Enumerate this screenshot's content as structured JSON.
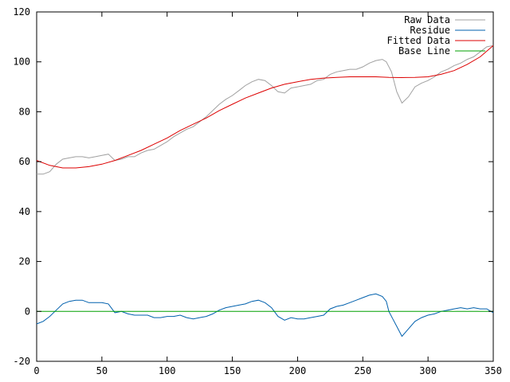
{
  "chart_data": {
    "type": "line",
    "title": "",
    "xlabel": "",
    "ylabel": "",
    "xlim": [
      0,
      350
    ],
    "ylim": [
      -20,
      120
    ],
    "xticks": [
      0,
      50,
      100,
      150,
      200,
      250,
      300,
      350
    ],
    "yticks": [
      -20,
      0,
      20,
      40,
      60,
      80,
      100,
      120
    ],
    "grid": false,
    "legend_position": "top-right",
    "series": [
      {
        "name": "Raw Data",
        "color": "#a0a0a0",
        "x": [
          0,
          5,
          10,
          15,
          20,
          25,
          30,
          35,
          40,
          45,
          50,
          55,
          60,
          65,
          70,
          75,
          80,
          85,
          90,
          95,
          100,
          105,
          110,
          115,
          120,
          125,
          130,
          135,
          140,
          145,
          150,
          155,
          160,
          165,
          170,
          175,
          180,
          185,
          190,
          195,
          200,
          205,
          210,
          215,
          220,
          225,
          230,
          235,
          240,
          245,
          250,
          255,
          260,
          265,
          268,
          272,
          276,
          280,
          285,
          290,
          295,
          300,
          305,
          310,
          315,
          320,
          325,
          330,
          335,
          340,
          345,
          350
        ],
        "y": [
          55,
          55,
          56,
          59,
          61,
          61.5,
          62,
          62,
          61.5,
          62,
          62.5,
          63,
          60.5,
          61,
          62,
          62,
          63.5,
          64.5,
          65,
          66.5,
          68,
          70,
          71.5,
          73,
          74,
          76,
          78,
          80.5,
          83,
          85,
          86.5,
          88.5,
          90.5,
          92,
          93,
          92.5,
          90.5,
          88,
          87.5,
          89.5,
          90,
          90.5,
          91,
          92.5,
          93,
          95,
          96,
          96.5,
          97,
          97,
          98,
          99.5,
          100.5,
          101,
          100,
          96,
          88,
          83.5,
          86,
          90,
          91.5,
          92.5,
          94,
          96,
          97,
          98.5,
          99.5,
          101,
          102,
          104,
          106,
          106.5
        ]
      },
      {
        "name": "Residue",
        "color": "#0060ad",
        "x": [
          0,
          5,
          10,
          15,
          20,
          25,
          30,
          35,
          40,
          45,
          50,
          55,
          60,
          65,
          70,
          75,
          80,
          85,
          90,
          95,
          100,
          105,
          110,
          115,
          120,
          125,
          130,
          135,
          140,
          145,
          150,
          155,
          160,
          165,
          170,
          175,
          180,
          185,
          190,
          195,
          200,
          205,
          210,
          215,
          220,
          225,
          230,
          235,
          240,
          245,
          250,
          255,
          260,
          265,
          268,
          270,
          273,
          276,
          280,
          285,
          290,
          295,
          300,
          305,
          310,
          315,
          320,
          325,
          330,
          335,
          340,
          345,
          350
        ],
        "y": [
          -5,
          -4,
          -2,
          0.5,
          3,
          4,
          4.5,
          4.5,
          3.5,
          3.5,
          3.5,
          3,
          -0.5,
          0,
          -1,
          -1.5,
          -1.5,
          -1.5,
          -2.5,
          -2.5,
          -2,
          -2,
          -1.5,
          -2.5,
          -3,
          -2.5,
          -2,
          -1,
          0.5,
          1.5,
          2,
          2.5,
          3,
          4,
          4.5,
          3.5,
          1.5,
          -2,
          -3.5,
          -2.5,
          -3,
          -3,
          -2.5,
          -2,
          -1.5,
          1,
          2,
          2.5,
          3.5,
          4.5,
          5.5,
          6.5,
          7,
          6,
          4,
          0,
          -3,
          -6,
          -10,
          -7,
          -4,
          -2.5,
          -1.5,
          -1,
          0,
          0.5,
          1,
          1.5,
          1,
          1.5,
          1,
          1,
          -0.5
        ]
      },
      {
        "name": "Fitted Data",
        "color": "#dd0000",
        "x": [
          0,
          10,
          20,
          30,
          40,
          50,
          60,
          70,
          80,
          90,
          100,
          110,
          120,
          130,
          140,
          150,
          160,
          170,
          180,
          190,
          200,
          210,
          220,
          230,
          240,
          250,
          260,
          270,
          280,
          290,
          300,
          310,
          320,
          330,
          340,
          350
        ],
        "y": [
          60.5,
          58.5,
          57.5,
          57.5,
          58,
          59,
          60.5,
          62.5,
          64.5,
          67,
          69.5,
          72.5,
          75,
          77.5,
          80.5,
          83,
          85.5,
          87.5,
          89.5,
          91,
          92,
          93,
          93.5,
          93.8,
          94,
          94,
          94,
          93.8,
          93.7,
          93.8,
          94,
          95,
          96.5,
          99,
          102,
          106.5
        ]
      },
      {
        "name": "Base Line",
        "color": "#00a000",
        "x": [
          0,
          350
        ],
        "y": [
          0,
          0
        ]
      }
    ]
  }
}
